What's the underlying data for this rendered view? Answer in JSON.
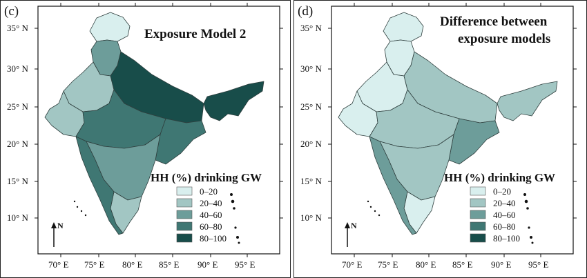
{
  "palette": [
    "#d9efee",
    "#a2c6c3",
    "#6d9d9a",
    "#3f7773",
    "#184d4a"
  ],
  "panels": [
    {
      "id": "c",
      "label": "(c)",
      "title_lines": [
        "Exposure Model 2"
      ],
      "legend": {
        "title": "HH (%) drinking GW",
        "items": [
          "0–20",
          "20–40",
          "40–60",
          "60–80",
          "80–100"
        ]
      },
      "lat_ticks": [
        "35° N",
        "30° N",
        "25° N",
        "20° N",
        "15° N",
        "10° N"
      ],
      "lon_ticks": [
        "70° E",
        "75° E",
        "80° E",
        "85° E",
        "90° E",
        "95° E"
      ],
      "north_label": "N",
      "regions": [
        {
          "name": "kashmir",
          "level": 0
        },
        {
          "name": "northwest",
          "level": 2
        },
        {
          "name": "rajasthan",
          "level": 1
        },
        {
          "name": "gujarat",
          "level": 1
        },
        {
          "name": "gangetic-plain",
          "level": 4
        },
        {
          "name": "central-plateau",
          "level": 3
        },
        {
          "name": "east",
          "level": 3
        },
        {
          "name": "northeast",
          "level": 4
        },
        {
          "name": "deccan",
          "level": 2
        },
        {
          "name": "south",
          "level": 1
        },
        {
          "name": "west-coast",
          "level": 3
        }
      ]
    },
    {
      "id": "d",
      "label": "(d)",
      "title_lines": [
        "Difference between",
        "exposure models"
      ],
      "legend": {
        "title": "HH (%) drinking GW",
        "items": [
          "0–20",
          "20–40",
          "40–60",
          "60–80",
          "80–100"
        ]
      },
      "lat_ticks": [
        "35° N",
        "30° N",
        "25° N",
        "20° N",
        "15° N",
        "10° N"
      ],
      "lon_ticks": [
        "70° E",
        "75° E",
        "80° E",
        "85° E",
        "90° E",
        "95° E"
      ],
      "north_label": "N",
      "regions": [
        {
          "name": "kashmir",
          "level": 0
        },
        {
          "name": "northwest",
          "level": 0
        },
        {
          "name": "rajasthan",
          "level": 0
        },
        {
          "name": "gujarat",
          "level": 0
        },
        {
          "name": "gangetic-plain",
          "level": 1
        },
        {
          "name": "central-plateau",
          "level": 1
        },
        {
          "name": "east",
          "level": 2
        },
        {
          "name": "northeast",
          "level": 1
        },
        {
          "name": "deccan",
          "level": 1
        },
        {
          "name": "south",
          "level": 0
        },
        {
          "name": "west-coast",
          "level": 2
        }
      ]
    }
  ]
}
